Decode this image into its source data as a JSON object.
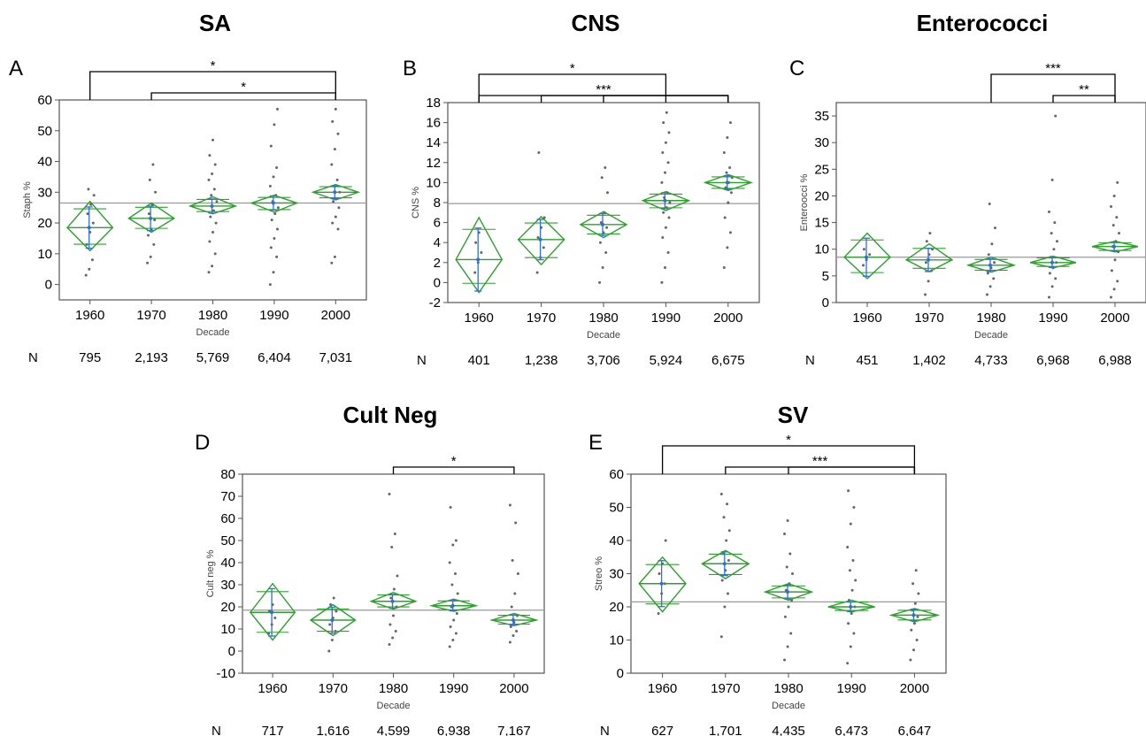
{
  "chart_data": [
    {
      "type": "scatter",
      "panel": "A",
      "title": "SA",
      "xlabel": "Decade",
      "ylabel": "Staph %",
      "ylim": [
        -5,
        60
      ],
      "yticks": [
        0,
        10,
        20,
        30,
        40,
        50,
        60
      ],
      "categories": [
        "1960",
        "1970",
        "1980",
        "1990",
        "2000"
      ],
      "n_label": "N",
      "n_values": [
        "795",
        "2,193",
        "5,769",
        "6,404",
        "7,031"
      ],
      "grand_mean": 26.5,
      "means": [
        18.5,
        21.5,
        25.5,
        26.5,
        30
      ],
      "ci_lower": [
        11,
        17,
        23,
        23.5,
        27.5
      ],
      "ci_upper": [
        27,
        26.5,
        28.5,
        29,
        32.5
      ],
      "points": [
        [
          3,
          5,
          8,
          13,
          17,
          20,
          23,
          26,
          29,
          31
        ],
        [
          7,
          9,
          13,
          16,
          18,
          21,
          23,
          26,
          30,
          34,
          39
        ],
        [
          4,
          6,
          10,
          14,
          17,
          20,
          22,
          24,
          27,
          29,
          31,
          34,
          36,
          39,
          42,
          47
        ],
        [
          0,
          4,
          9,
          12,
          15,
          18,
          21,
          23,
          25,
          27,
          29,
          32,
          35,
          38,
          45,
          52,
          57
        ],
        [
          7,
          9,
          18,
          20,
          22,
          25,
          27,
          28,
          30,
          32,
          34,
          39,
          44,
          49,
          53,
          57
        ]
      ],
      "significance": [
        {
          "from": "1960",
          "to": "2000",
          "label": "*"
        },
        {
          "from": "1970",
          "to": "2000",
          "label": "*"
        }
      ]
    },
    {
      "type": "scatter",
      "panel": "B",
      "title": "CNS",
      "xlabel": "Decade",
      "ylabel": "CNS %",
      "ylim": [
        -2,
        18
      ],
      "yticks": [
        -2,
        0,
        2,
        4,
        6,
        8,
        10,
        12,
        14,
        16,
        18
      ],
      "categories": [
        "1960",
        "1970",
        "1980",
        "1990",
        "2000"
      ],
      "n_label": "N",
      "n_values": [
        "401",
        "1,238",
        "3,706",
        "5,924",
        "6,675"
      ],
      "grand_mean": 7.9,
      "means": [
        2.3,
        4.3,
        5.8,
        8.2,
        10
      ],
      "ci_lower": [
        -1,
        1.8,
        4.5,
        7.2,
        9.2
      ],
      "ci_upper": [
        6.5,
        6.6,
        7.1,
        9.1,
        10.8
      ],
      "points": [
        [
          1,
          2,
          3,
          4,
          5
        ],
        [
          1,
          2.5,
          3.5,
          4.5,
          5.5,
          6.5,
          13
        ],
        [
          0,
          1.5,
          3,
          4,
          5,
          5.5,
          6,
          7,
          9,
          10.5,
          11.5
        ],
        [
          0,
          1.5,
          3,
          4.5,
          5.5,
          6.5,
          7,
          7.5,
          8,
          8.5,
          9,
          10,
          11,
          12,
          13,
          14,
          15,
          16,
          17
        ],
        [
          1.5,
          3.5,
          5,
          6.5,
          8,
          9,
          9.5,
          10,
          10.5,
          11,
          11.5,
          13,
          14.5,
          16
        ]
      ],
      "significance": [
        {
          "from": "1960",
          "to": "1990",
          "label": "*"
        },
        {
          "from": "1960",
          "to": "2000",
          "label": "***"
        },
        {
          "from": "1970",
          "to": "2000",
          "label": ""
        },
        {
          "from": "1980",
          "to": "2000",
          "label": ""
        }
      ]
    },
    {
      "type": "scatter",
      "panel": "C",
      "title": "Enterococci",
      "xlabel": "Decade",
      "ylabel": "Enteroocci %",
      "ylim": [
        0,
        37.5
      ],
      "yticks": [
        0,
        5,
        10,
        15,
        20,
        25,
        30,
        35
      ],
      "categories": [
        "1960",
        "1970",
        "1980",
        "1990",
        "2000"
      ],
      "n_label": "N",
      "n_values": [
        "451",
        "1,402",
        "4,733",
        "6,968",
        "6,988"
      ],
      "grand_mean": 8.5,
      "means": [
        8.5,
        8,
        7,
        7.5,
        10.5
      ],
      "ci_lower": [
        4.5,
        5.8,
        5.7,
        6.5,
        9.5
      ],
      "ci_upper": [
        13,
        11,
        8.5,
        8.7,
        11.5
      ],
      "points": [
        [
          7,
          8,
          9,
          10
        ],
        [
          1.5,
          4,
          6,
          7.5,
          9,
          10,
          11.5,
          13
        ],
        [
          1.5,
          3,
          4.5,
          5.5,
          6.5,
          7.5,
          9,
          11,
          14,
          18.5
        ],
        [
          1,
          3,
          4.5,
          5.5,
          6.5,
          7.5,
          8.5,
          10,
          11.5,
          13,
          15,
          17,
          23,
          35
        ],
        [
          1,
          2.5,
          4,
          6,
          8,
          9.5,
          10.5,
          11.5,
          13,
          14.5,
          16,
          18,
          20,
          22.5
        ]
      ],
      "significance": [
        {
          "from": "1980",
          "to": "2000",
          "label": "***"
        },
        {
          "from": "1990",
          "to": "2000",
          "label": "**"
        }
      ]
    },
    {
      "type": "scatter",
      "panel": "D",
      "title": "Cult Neg",
      "xlabel": "Decade",
      "ylabel": "Cult neg %",
      "ylim": [
        -10,
        80
      ],
      "yticks": [
        -10,
        0,
        10,
        20,
        30,
        40,
        50,
        60,
        70,
        80
      ],
      "categories": [
        "1960",
        "1970",
        "1980",
        "1990",
        "2000"
      ],
      "n_label": "N",
      "n_values": [
        "717",
        "1,616",
        "4,599",
        "6,938",
        "7,167"
      ],
      "grand_mean": 18.5,
      "means": [
        17.5,
        14,
        22.5,
        20.5,
        14
      ],
      "ci_lower": [
        5,
        7,
        19,
        18,
        11.5
      ],
      "ci_upper": [
        30.5,
        21,
        26.5,
        23.5,
        17
      ],
      "points": [
        [
          8,
          12,
          15,
          18,
          21
        ],
        [
          0,
          5,
          9,
          12,
          15,
          18,
          21,
          24
        ],
        [
          3,
          6,
          9,
          12,
          16,
          20,
          24,
          28,
          34,
          47,
          53,
          71
        ],
        [
          2,
          5,
          8,
          11,
          14,
          17,
          20,
          23,
          26,
          30,
          35,
          40,
          48,
          50,
          65
        ],
        [
          4,
          7,
          9,
          11,
          13,
          16,
          20,
          26,
          35,
          41,
          58,
          66
        ]
      ],
      "significance": [
        {
          "from": "1980",
          "to": "2000",
          "label": "*"
        }
      ]
    },
    {
      "type": "scatter",
      "panel": "E",
      "title": "SV",
      "xlabel": "Decade",
      "ylabel": "Streo %",
      "ylim": [
        0,
        60
      ],
      "yticks": [
        0,
        10,
        20,
        30,
        40,
        50,
        60
      ],
      "categories": [
        "1960",
        "1970",
        "1980",
        "1990",
        "2000"
      ],
      "n_label": "N",
      "n_values": [
        "627",
        "1,701",
        "4,435",
        "6,473",
        "6,647"
      ],
      "grand_mean": 21.5,
      "means": [
        27,
        33,
        24.5,
        20,
        17.5
      ],
      "ci_lower": [
        18.5,
        28.5,
        22,
        18.5,
        15.5
      ],
      "ci_upper": [
        35,
        37,
        27,
        22,
        19.5
      ],
      "points": [
        [
          18,
          24,
          27,
          30,
          33,
          40
        ],
        [
          11,
          20,
          24,
          28,
          31,
          34,
          36,
          40,
          43,
          47,
          51,
          54
        ],
        [
          4,
          8,
          12,
          17,
          20,
          22,
          25,
          27,
          30,
          32,
          36,
          42,
          46
        ],
        [
          3,
          8,
          12,
          15,
          18,
          20,
          22,
          25,
          28,
          31,
          34,
          38,
          45,
          50,
          55
        ],
        [
          4,
          7,
          10,
          13,
          15,
          17,
          19,
          21,
          24,
          27,
          31
        ]
      ],
      "significance": [
        {
          "from": "1960",
          "to": "2000",
          "label": "*"
        },
        {
          "from": "1970",
          "to": "2000",
          "label": "***"
        },
        {
          "from": "1980",
          "to": "2000",
          "label": ""
        }
      ]
    }
  ],
  "colors": {
    "diamond": "#2ca02c",
    "mean_line": "#999999",
    "ci_bar": "#2f6fd6",
    "points": "#333333",
    "axis": "#555555"
  }
}
